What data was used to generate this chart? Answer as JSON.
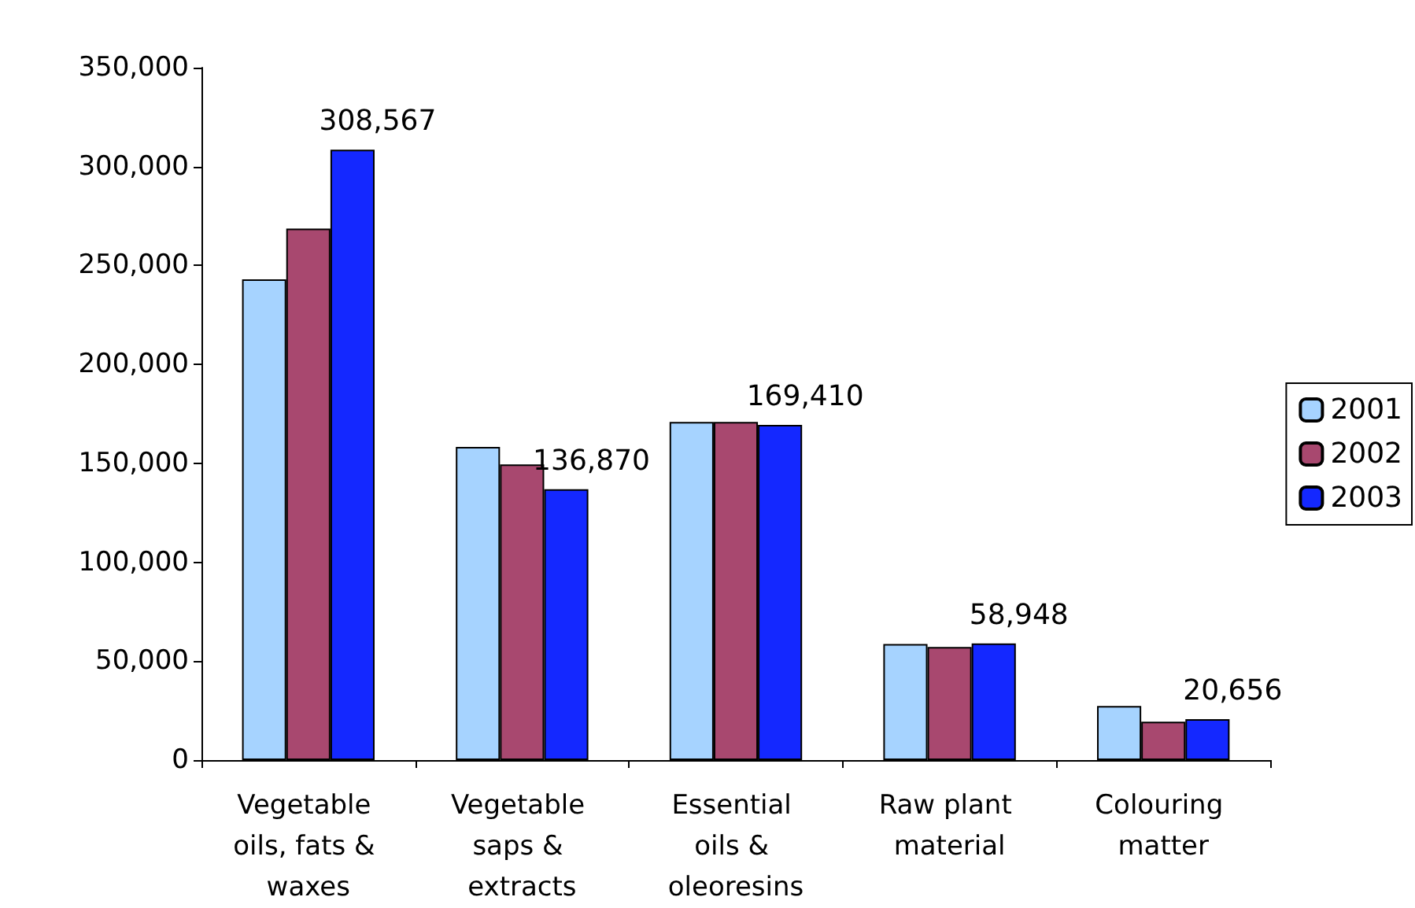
{
  "chart_data": {
    "type": "bar",
    "categories": [
      "Vegetable oils, fats & waxes",
      "Vegetable saps & extracts",
      "Essential oils & oleoresins",
      "Raw plant material",
      "Colouring matter"
    ],
    "series": [
      {
        "name": "2001",
        "color": "#a6d3ff",
        "values": [
          243000,
          158300,
          170900,
          58700,
          27300
        ]
      },
      {
        "name": "2002",
        "color": "#a8486f",
        "values": [
          268700,
          149400,
          170900,
          57200,
          19400
        ]
      },
      {
        "name": "2003",
        "color": "#1428ff",
        "values": [
          308567,
          136870,
          169410,
          58948,
          20656
        ],
        "value_labels": [
          "308,567",
          "136,870",
          "169,410",
          "58,948",
          "20,656"
        ]
      }
    ],
    "ylim": [
      0,
      350000
    ],
    "yticks": [
      0,
      {
        "value": 50000,
        "label": "50,000"
      },
      {
        "value": 100000,
        "label": "100,000"
      },
      {
        "value": 150000,
        "label": "150,000"
      },
      {
        "value": 200000,
        "label": "200,000"
      },
      {
        "value": 250000,
        "label": "250,000"
      },
      {
        "value": 300000,
        "label": "300,000"
      },
      {
        "value": 350000,
        "label": "350,000"
      }
    ],
    "grid": false,
    "legend": "right"
  }
}
